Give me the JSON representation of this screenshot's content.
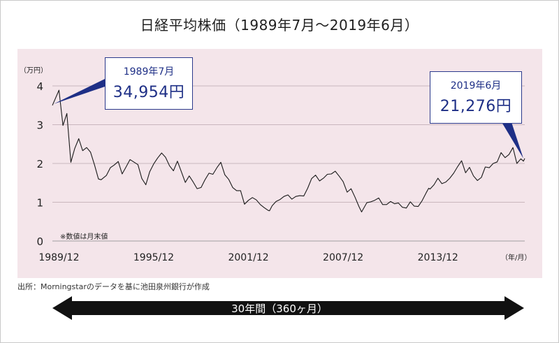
{
  "title": "日経平均株価（1989年7月〜2019年6月）",
  "source": "出所：Morningstarのデータを基に池田泉州銀行が作成",
  "arrow_label": "30年間（360ヶ月）",
  "colors": {
    "panel_bg": "#f4e5ea",
    "line": "#1a1a1a",
    "callout": "#1e2f86",
    "arrow": "#111111"
  },
  "callouts": [
    {
      "date": "1989年7月",
      "value": "34,954円"
    },
    {
      "date": "2019年6月",
      "value": "21,276円"
    }
  ],
  "chart_data": {
    "type": "line",
    "title": "日経平均株価（1989年7月〜2019年6月）",
    "ylabel": "（万円）",
    "xlabel": "（年/月）",
    "note": "※数値は月末値",
    "ylim": [
      0,
      4.2
    ],
    "yticks": [
      0,
      1,
      2,
      3,
      4
    ],
    "xticks": [
      "1989/12",
      "1995/12",
      "2001/12",
      "2007/12",
      "2013/12"
    ],
    "x_range": [
      "1989-07",
      "2019-06"
    ],
    "grid": "horizontal",
    "series": [
      {
        "values": [
          [
            "1989-07",
            3.5
          ],
          [
            "1989-12",
            3.89
          ],
          [
            "1990-03",
            2.98
          ],
          [
            "1990-06",
            3.29
          ],
          [
            "1990-09",
            2.03
          ],
          [
            "1990-12",
            2.39
          ],
          [
            "1991-03",
            2.64
          ],
          [
            "1991-06",
            2.33
          ],
          [
            "1991-09",
            2.41
          ],
          [
            "1991-12",
            2.29
          ],
          [
            "1992-03",
            1.96
          ],
          [
            "1992-06",
            1.6
          ],
          [
            "1992-08",
            1.58
          ],
          [
            "1992-12",
            1.69
          ],
          [
            "1993-03",
            1.89
          ],
          [
            "1993-06",
            1.96
          ],
          [
            "1993-09",
            2.05
          ],
          [
            "1993-12",
            1.73
          ],
          [
            "1994-03",
            1.91
          ],
          [
            "1994-06",
            2.1
          ],
          [
            "1994-12",
            1.97
          ],
          [
            "1995-03",
            1.61
          ],
          [
            "1995-06",
            1.45
          ],
          [
            "1995-09",
            1.79
          ],
          [
            "1995-12",
            1.99
          ],
          [
            "1996-03",
            2.14
          ],
          [
            "1996-06",
            2.27
          ],
          [
            "1996-09",
            2.16
          ],
          [
            "1996-12",
            1.94
          ],
          [
            "1997-03",
            1.81
          ],
          [
            "1997-06",
            2.06
          ],
          [
            "1997-09",
            1.79
          ],
          [
            "1997-12",
            1.51
          ],
          [
            "1998-03",
            1.68
          ],
          [
            "1998-06",
            1.52
          ],
          [
            "1998-09",
            1.35
          ],
          [
            "1998-12",
            1.38
          ],
          [
            "1999-03",
            1.58
          ],
          [
            "1999-06",
            1.75
          ],
          [
            "1999-09",
            1.72
          ],
          [
            "1999-12",
            1.89
          ],
          [
            "2000-03",
            2.03
          ],
          [
            "2000-06",
            1.71
          ],
          [
            "2000-09",
            1.59
          ],
          [
            "2000-12",
            1.38
          ],
          [
            "2001-03",
            1.3
          ],
          [
            "2001-06",
            1.3
          ],
          [
            "2001-09",
            0.95
          ],
          [
            "2001-12",
            1.05
          ],
          [
            "2002-03",
            1.12
          ],
          [
            "2002-06",
            1.06
          ],
          [
            "2002-09",
            0.94
          ],
          [
            "2002-12",
            0.86
          ],
          [
            "2003-03",
            0.79
          ],
          [
            "2003-04",
            0.78
          ],
          [
            "2003-06",
            0.91
          ],
          [
            "2003-09",
            1.02
          ],
          [
            "2003-12",
            1.07
          ],
          [
            "2004-03",
            1.15
          ],
          [
            "2004-06",
            1.19
          ],
          [
            "2004-09",
            1.08
          ],
          [
            "2004-12",
            1.15
          ],
          [
            "2005-03",
            1.17
          ],
          [
            "2005-06",
            1.16
          ],
          [
            "2005-09",
            1.36
          ],
          [
            "2005-12",
            1.61
          ],
          [
            "2006-03",
            1.7
          ],
          [
            "2006-06",
            1.55
          ],
          [
            "2006-09",
            1.62
          ],
          [
            "2006-12",
            1.72
          ],
          [
            "2007-03",
            1.73
          ],
          [
            "2007-06",
            1.8
          ],
          [
            "2007-09",
            1.67
          ],
          [
            "2007-12",
            1.53
          ],
          [
            "2008-03",
            1.26
          ],
          [
            "2008-06",
            1.35
          ],
          [
            "2008-09",
            1.13
          ],
          [
            "2008-12",
            0.89
          ],
          [
            "2009-02",
            0.75
          ],
          [
            "2009-06",
            0.99
          ],
          [
            "2009-09",
            1.01
          ],
          [
            "2009-12",
            1.05
          ],
          [
            "2010-03",
            1.11
          ],
          [
            "2010-06",
            0.94
          ],
          [
            "2010-09",
            0.94
          ],
          [
            "2010-12",
            1.02
          ],
          [
            "2011-03",
            0.96
          ],
          [
            "2011-06",
            0.98
          ],
          [
            "2011-09",
            0.87
          ],
          [
            "2011-12",
            0.85
          ],
          [
            "2012-03",
            1.01
          ],
          [
            "2012-06",
            0.9
          ],
          [
            "2012-09",
            0.89
          ],
          [
            "2012-12",
            1.04
          ],
          [
            "2013-03",
            1.24
          ],
          [
            "2013-05",
            1.36
          ],
          [
            "2013-06",
            1.34
          ],
          [
            "2013-09",
            1.45
          ],
          [
            "2013-12",
            1.62
          ],
          [
            "2014-03",
            1.48
          ],
          [
            "2014-06",
            1.52
          ],
          [
            "2014-09",
            1.62
          ],
          [
            "2014-12",
            1.75
          ],
          [
            "2015-03",
            1.92
          ],
          [
            "2015-06",
            2.07
          ],
          [
            "2015-09",
            1.76
          ],
          [
            "2015-12",
            1.9
          ],
          [
            "2016-03",
            1.68
          ],
          [
            "2016-06",
            1.56
          ],
          [
            "2016-09",
            1.64
          ],
          [
            "2016-12",
            1.91
          ],
          [
            "2017-03",
            1.89
          ],
          [
            "2017-06",
            2.0
          ],
          [
            "2017-09",
            2.04
          ],
          [
            "2017-12",
            2.28
          ],
          [
            "2018-03",
            2.15
          ],
          [
            "2018-06",
            2.23
          ],
          [
            "2018-09",
            2.41
          ],
          [
            "2018-12",
            2.0
          ],
          [
            "2019-03",
            2.12
          ],
          [
            "2019-05",
            2.06
          ],
          [
            "2019-06",
            2.13
          ]
        ]
      }
    ]
  }
}
